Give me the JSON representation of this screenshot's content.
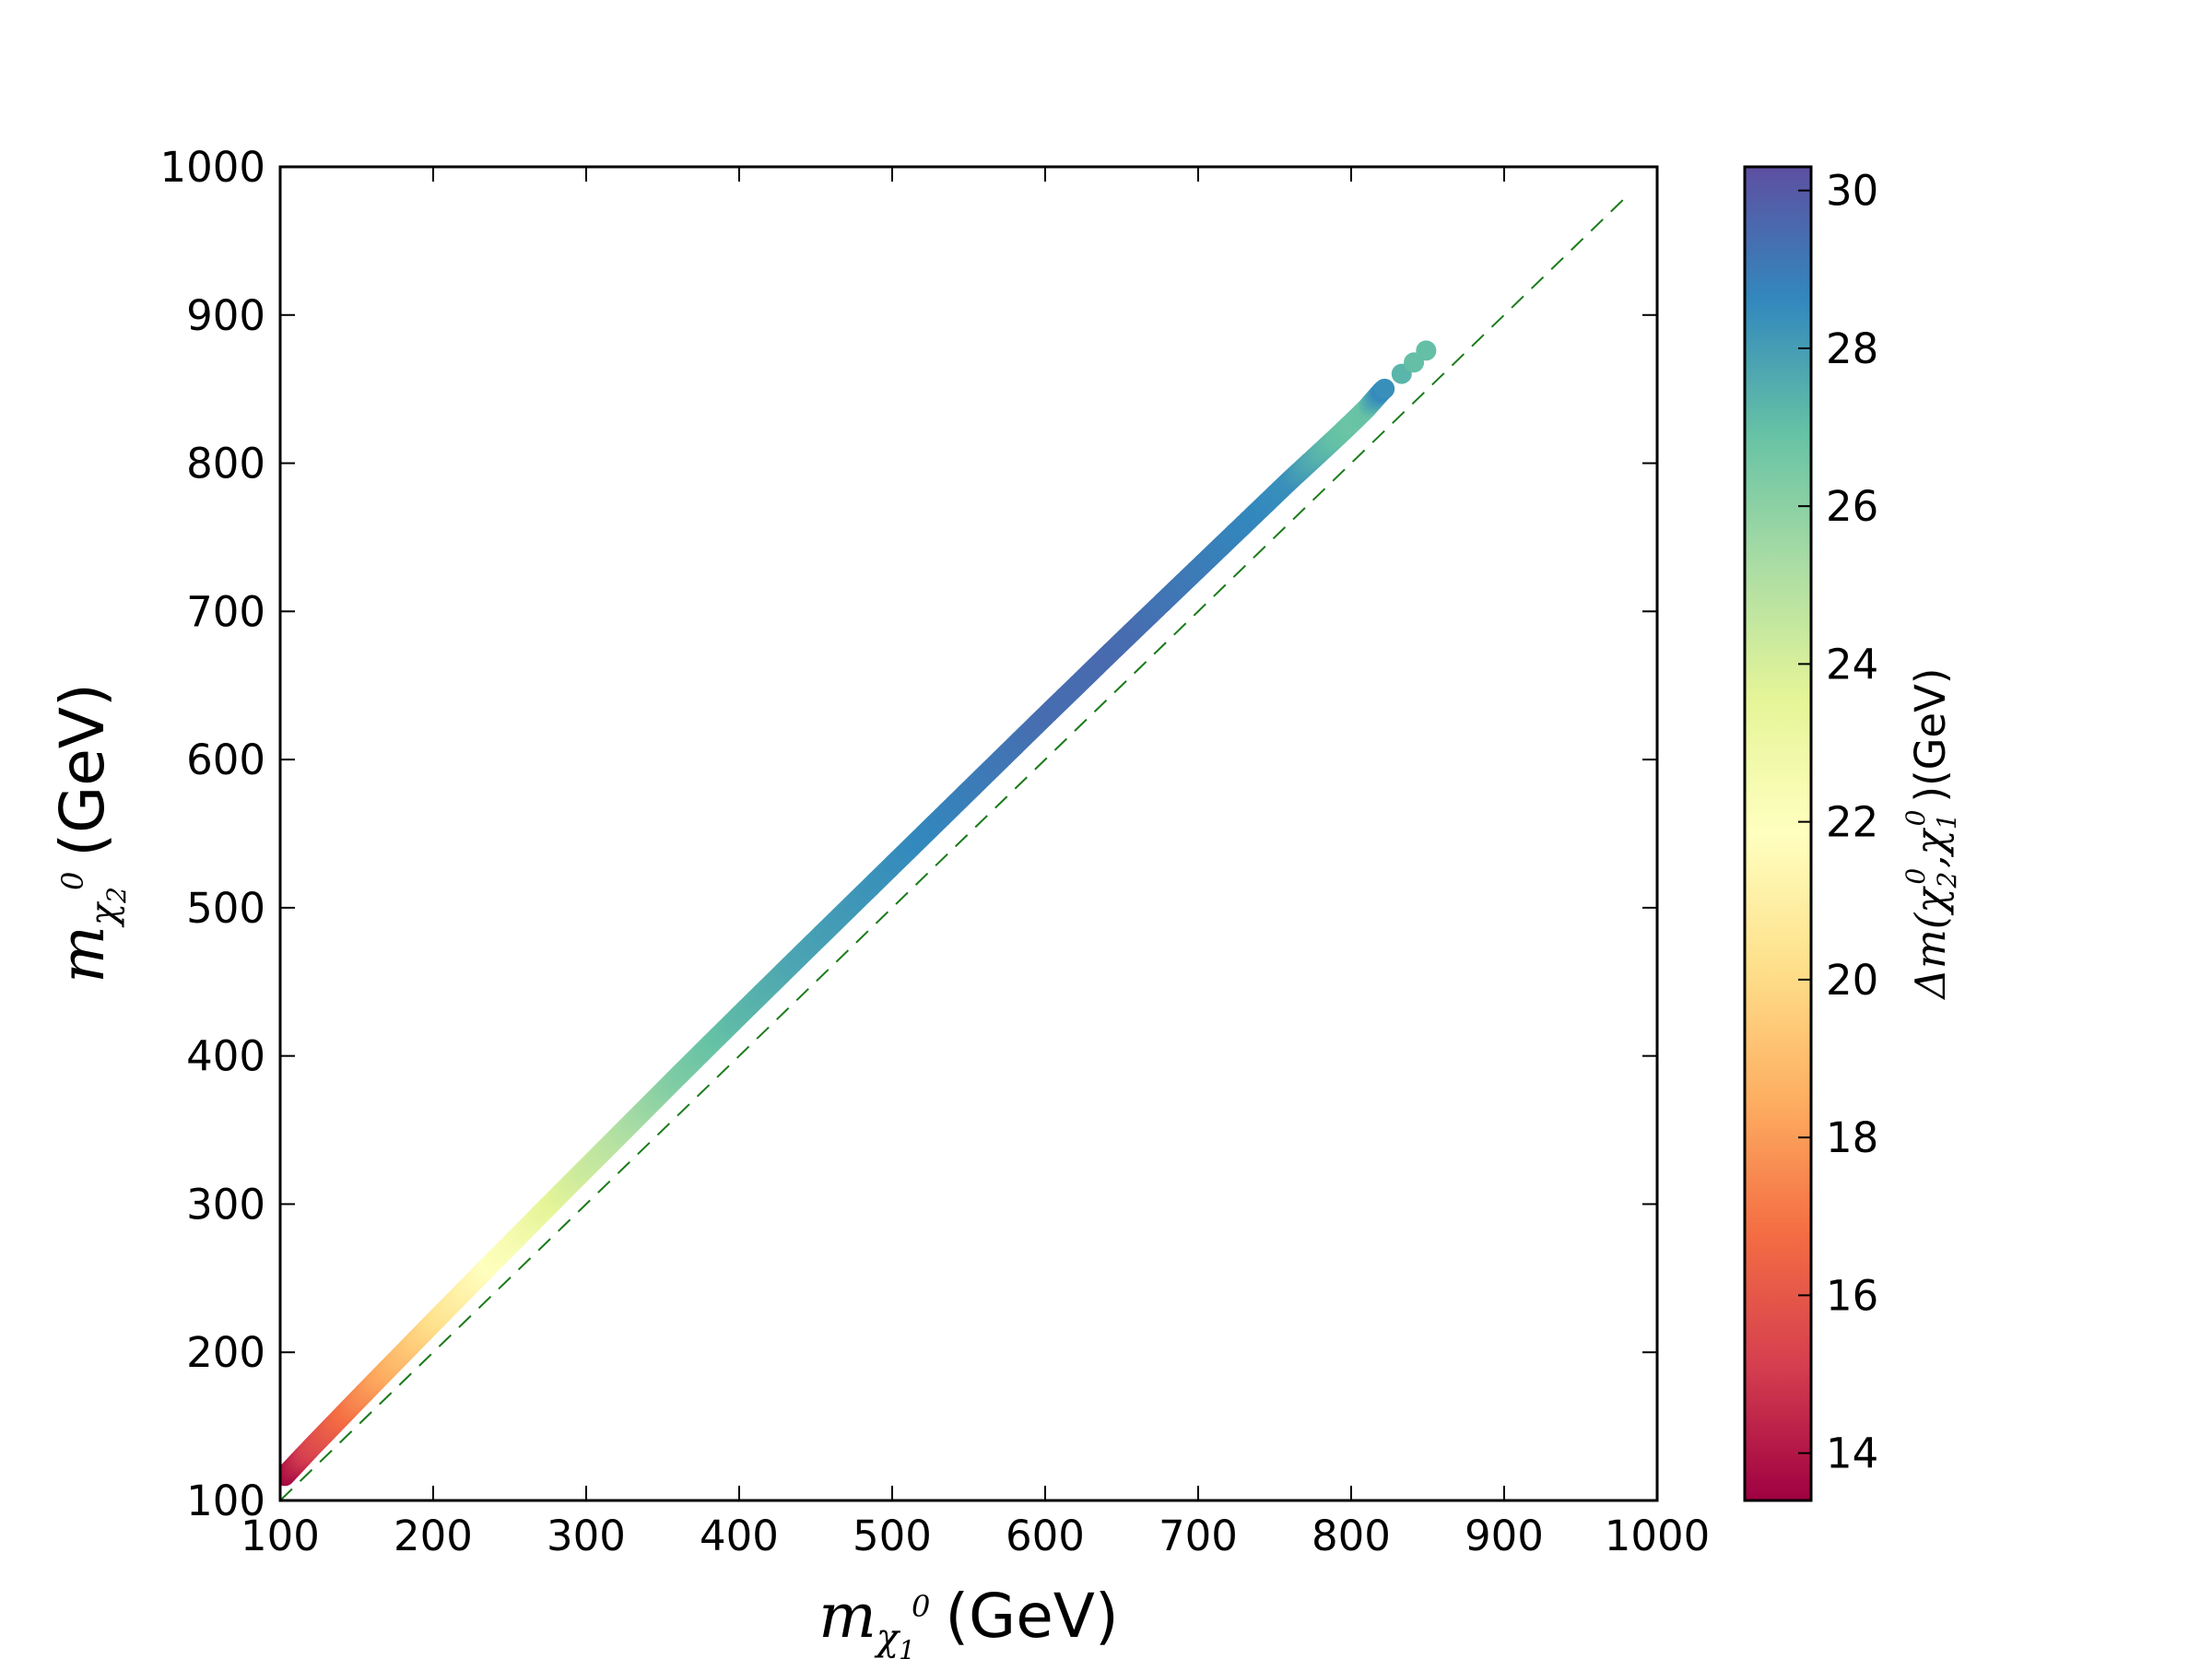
{
  "chart_data": {
    "type": "scatter",
    "xlabel": {
      "symbol": "m",
      "sub": "χ",
      "subsub": "1",
      "sup": "0",
      "unit": "(GeV)"
    },
    "ylabel": {
      "symbol": "m",
      "sub": "χ",
      "subsub": "2",
      "sup": "0",
      "unit": "(GeV)"
    },
    "xlim": [
      100,
      1000
    ],
    "ylim": [
      100,
      1000
    ],
    "x_ticks": [
      "100",
      "200",
      "300",
      "400",
      "500",
      "600",
      "700",
      "800",
      "900",
      "1000"
    ],
    "y_ticks": [
      "100",
      "200",
      "300",
      "400",
      "500",
      "600",
      "700",
      "800",
      "900",
      "1000"
    ],
    "reference_line": {
      "style": "dashed",
      "color": "#1a7a1a",
      "from": [
        100,
        100
      ],
      "to": [
        980,
        980
      ],
      "description": "y = x"
    },
    "colorbar": {
      "label": {
        "prefix": "Δm(",
        "a": "χ",
        "a_sub": "2",
        "a_sup": "0",
        "sep": ",",
        "b": "χ",
        "b_sub": "1",
        "b_sup": "0",
        "suffix": ")(GeV)"
      },
      "range": [
        13.4,
        30.3
      ],
      "ticks": [
        "14",
        "16",
        "18",
        "20",
        "22",
        "24",
        "26",
        "28",
        "30"
      ],
      "colormap": "Spectral",
      "stops": [
        "#9e0142",
        "#d53e4f",
        "#f46d43",
        "#fdae61",
        "#fee08b",
        "#ffffbf",
        "#e6f598",
        "#abdda4",
        "#66c2a5",
        "#3288bd",
        "#5e4fa2"
      ]
    },
    "series": [
      {
        "name": "points",
        "x": [
          103,
          110,
          120,
          135,
          150,
          165,
          180,
          195,
          210,
          225,
          240,
          255,
          270,
          285,
          300,
          320,
          340,
          360,
          380,
          400,
          420,
          440,
          460,
          480,
          500,
          520,
          540,
          560,
          580,
          600,
          620,
          640,
          660,
          680,
          700,
          720,
          740,
          760,
          780,
          790,
          800,
          810,
          820,
          833,
          841,
          849
        ],
        "dm": [
          13.6,
          14.3,
          15.3,
          16.3,
          17.3,
          18.2,
          19.0,
          19.8,
          20.6,
          21.3,
          22.0,
          22.5,
          23.2,
          23.8,
          24.3,
          24.9,
          25.6,
          26.3,
          26.8,
          27.2,
          27.5,
          27.8,
          28.0,
          28.2,
          28.4,
          28.6,
          28.8,
          29.0,
          29.2,
          29.4,
          29.4,
          29.5,
          29.4,
          29.2,
          29.0,
          28.8,
          28.6,
          28.4,
          27.4,
          27.0,
          26.8,
          26.9,
          28.6,
          27.3,
          27.0,
          27.0
        ]
      }
    ]
  }
}
